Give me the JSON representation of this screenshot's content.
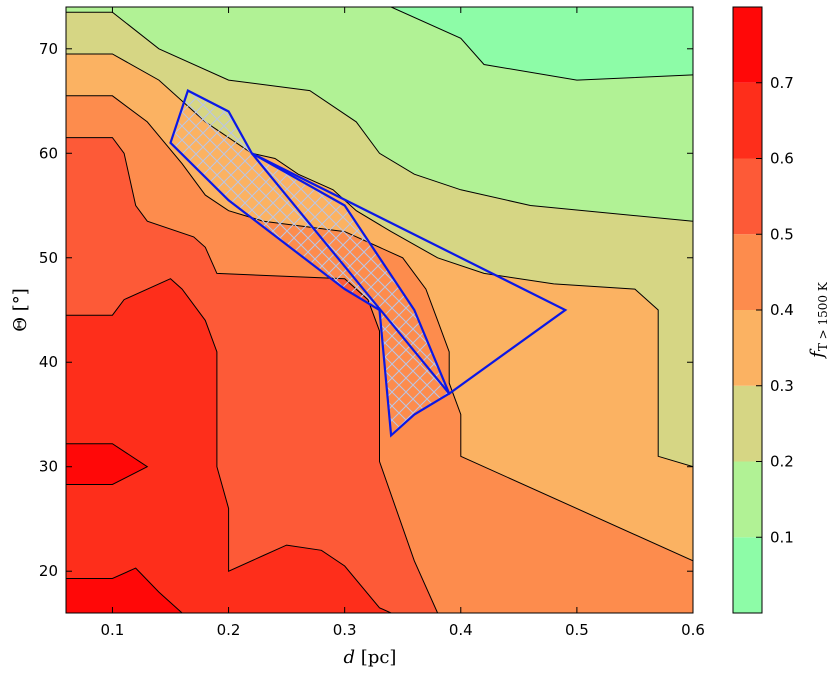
{
  "chart_data": {
    "type": "contourf",
    "xlabel_var": "d",
    "xlabel_unit": "[pc]",
    "ylabel_var": "Θ",
    "ylabel_unit": "[°]",
    "colorbar_label": "f",
    "colorbar_label_sub": "T > 1500 K",
    "xlim": [
      0.06,
      0.6
    ],
    "ylim": [
      16,
      74
    ],
    "xticks": [
      0.1,
      0.2,
      0.3,
      0.4,
      0.5,
      0.6
    ],
    "xtick_labels": [
      "0.1",
      "0.2",
      "0.3",
      "0.4",
      "0.5",
      "0.6"
    ],
    "yticks": [
      20,
      30,
      40,
      50,
      60,
      70
    ],
    "ytick_labels": [
      "20",
      "30",
      "40",
      "50",
      "60",
      "70"
    ],
    "colorbar_ticks": [
      0.1,
      0.2,
      0.3,
      0.4,
      0.5,
      0.6,
      0.7
    ],
    "colorbar_tick_labels": [
      "0.1",
      "0.2",
      "0.3",
      "0.4",
      "0.5",
      "0.6",
      "0.7"
    ],
    "levels": [
      0.0,
      0.1,
      0.2,
      0.3,
      0.4,
      0.5,
      0.6,
      0.7,
      0.8
    ],
    "level_colors": [
      "#8dfca7",
      "#b1f295",
      "#d6d684",
      "#fbb262",
      "#fd8c4d",
      "#fd5a37",
      "#fe2e1b",
      "#ff0808"
    ],
    "contours": [
      {
        "level": 0.1,
        "points": [
          [
            0.34,
            74
          ],
          [
            0.4,
            71
          ],
          [
            0.42,
            68.5
          ],
          [
            0.5,
            67
          ],
          [
            0.6,
            67.5
          ]
        ]
      },
      {
        "level": 0.2,
        "points": [
          [
            0.06,
            73.5
          ],
          [
            0.1,
            73.5
          ],
          [
            0.14,
            70
          ],
          [
            0.2,
            67
          ],
          [
            0.27,
            66
          ],
          [
            0.31,
            63
          ],
          [
            0.33,
            60
          ],
          [
            0.36,
            58
          ],
          [
            0.4,
            56.5
          ],
          [
            0.46,
            55
          ],
          [
            0.6,
            53.5
          ]
        ]
      },
      {
        "level": 0.3,
        "points": [
          [
            0.06,
            69.5
          ],
          [
            0.1,
            69.5
          ],
          [
            0.14,
            67
          ],
          [
            0.18,
            63
          ],
          [
            0.22,
            60
          ],
          [
            0.24,
            59.5
          ],
          [
            0.26,
            58
          ],
          [
            0.29,
            56.5
          ],
          [
            0.31,
            54.5
          ],
          [
            0.34,
            52.5
          ],
          [
            0.38,
            50
          ],
          [
            0.42,
            48.5
          ],
          [
            0.48,
            47.5
          ],
          [
            0.55,
            47
          ],
          [
            0.57,
            45
          ],
          [
            0.57,
            31
          ],
          [
            0.6,
            30
          ]
        ]
      },
      {
        "level": 0.4,
        "points": [
          [
            0.06,
            65.5
          ],
          [
            0.1,
            65.5
          ],
          [
            0.13,
            63
          ],
          [
            0.16,
            59
          ],
          [
            0.18,
            56
          ],
          [
            0.2,
            54.5
          ],
          [
            0.23,
            53.5
          ],
          [
            0.3,
            52.5
          ],
          [
            0.35,
            50
          ],
          [
            0.37,
            47
          ],
          [
            0.38,
            44
          ],
          [
            0.39,
            41
          ],
          [
            0.39,
            38
          ],
          [
            0.4,
            35
          ],
          [
            0.4,
            31
          ],
          [
            0.6,
            21
          ]
        ]
      },
      {
        "level": 0.5,
        "points": [
          [
            0.06,
            61.5
          ],
          [
            0.1,
            61.5
          ],
          [
            0.11,
            60
          ],
          [
            0.12,
            55
          ],
          [
            0.13,
            53.5
          ],
          [
            0.17,
            52
          ],
          [
            0.18,
            51
          ],
          [
            0.19,
            48.5
          ],
          [
            0.3,
            48
          ],
          [
            0.32,
            46
          ],
          [
            0.33,
            43
          ],
          [
            0.33,
            30.5
          ],
          [
            0.36,
            21
          ],
          [
            0.38,
            16
          ]
        ]
      },
      {
        "level": 0.6,
        "points": [
          [
            0.06,
            44.5
          ],
          [
            0.1,
            44.5
          ],
          [
            0.11,
            46
          ],
          [
            0.15,
            48
          ],
          [
            0.16,
            47
          ],
          [
            0.18,
            44
          ],
          [
            0.19,
            41
          ],
          [
            0.19,
            36
          ],
          [
            0.19,
            30
          ],
          [
            0.2,
            26
          ],
          [
            0.2,
            20
          ],
          [
            0.23,
            21.5
          ],
          [
            0.25,
            22.5
          ],
          [
            0.28,
            22
          ],
          [
            0.3,
            20.5
          ],
          [
            0.33,
            16.5
          ],
          [
            0.34,
            16
          ]
        ]
      },
      {
        "level": 0.7,
        "points": [
          [
            0.06,
            32.2
          ],
          [
            0.1,
            32.2
          ],
          [
            0.13,
            30
          ],
          [
            0.1,
            28.3
          ],
          [
            0.06,
            28.3
          ]
        ]
      },
      {
        "level": 0.7,
        "points": [
          [
            0.06,
            19.3
          ],
          [
            0.1,
            19.3
          ],
          [
            0.12,
            20.3
          ],
          [
            0.14,
            18
          ],
          [
            0.16,
            16
          ]
        ]
      }
    ],
    "overlays": [
      {
        "type": "polygon",
        "stroke": "#0b18e6",
        "hatch": true,
        "points": [
          [
            0.15,
            61
          ],
          [
            0.165,
            66
          ],
          [
            0.2,
            64
          ],
          [
            0.22,
            60
          ],
          [
            0.3,
            55
          ],
          [
            0.36,
            45
          ],
          [
            0.39,
            37
          ],
          [
            0.36,
            35
          ],
          [
            0.34,
            33
          ],
          [
            0.33,
            45
          ],
          [
            0.3,
            47
          ],
          [
            0.2,
            55.5
          ]
        ]
      },
      {
        "type": "polygon",
        "stroke": "#0b18e6",
        "hatch": false,
        "points": [
          [
            0.22,
            60
          ],
          [
            0.49,
            45
          ],
          [
            0.39,
            37
          ]
        ]
      }
    ]
  }
}
